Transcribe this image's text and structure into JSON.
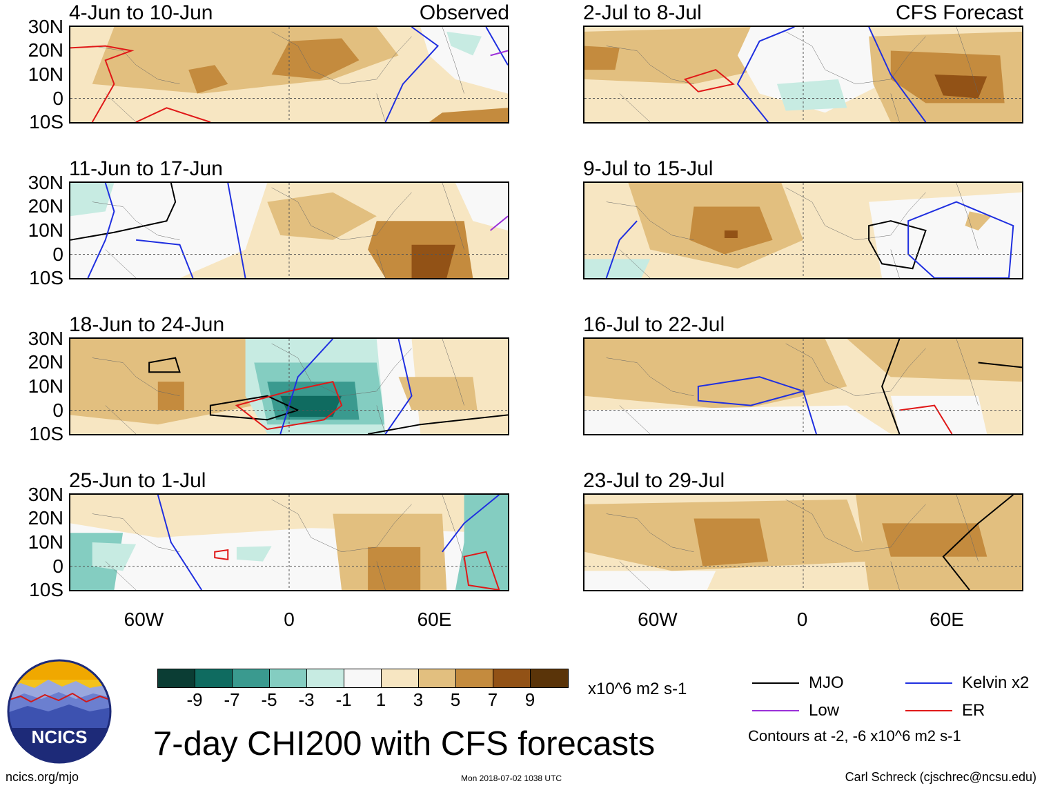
{
  "panels": [
    {
      "title": "4-Jun to 10-Jun",
      "tag": "Observed"
    },
    {
      "title": "2-Jul to 8-Jul",
      "tag": "CFS Forecast"
    },
    {
      "title": "11-Jun to 17-Jun",
      "tag": ""
    },
    {
      "title": "9-Jul to 15-Jul",
      "tag": ""
    },
    {
      "title": "18-Jun to 24-Jun",
      "tag": ""
    },
    {
      "title": "16-Jul to 22-Jul",
      "tag": ""
    },
    {
      "title": "25-Jun to 1-Jul",
      "tag": ""
    },
    {
      "title": "23-Jul to 29-Jul",
      "tag": ""
    }
  ],
  "lat_labels": [
    "30N",
    "20N",
    "10N",
    "0",
    "10S"
  ],
  "lon_labels": [
    "60W",
    "0",
    "60E"
  ],
  "colorbar": {
    "colors": [
      "#0b3d34",
      "#0f6b60",
      "#3a9a8f",
      "#84cdc1",
      "#c7ebe2",
      "#f8f8f8",
      "#f7e6c2",
      "#e2bf7f",
      "#c48b3e",
      "#925216",
      "#5a3409"
    ],
    "ticks": [
      "-9",
      "-7",
      "-5",
      "-3",
      "-1",
      "1",
      "3",
      "5",
      "7",
      "9"
    ],
    "units": "x10^6 m2 s-1"
  },
  "title": "7-day CHI200 with CFS forecasts",
  "legend": [
    {
      "label": "MJO",
      "color": "#000000"
    },
    {
      "label": "Kelvin x2",
      "color": "#1f2fe0"
    },
    {
      "label": "Low",
      "color": "#9b30d9"
    },
    {
      "label": "ER",
      "color": "#e01818"
    }
  ],
  "contours_note": "Contours at -2, -6 x10^6 m2 s-1",
  "logo_text": "NCICS",
  "footer": {
    "left": "ncics.org/mjo",
    "center": "Mon 2018-07-02 1038 UTC",
    "right": "Carl Schreck (cjschrec@ncsu.edu)"
  }
}
